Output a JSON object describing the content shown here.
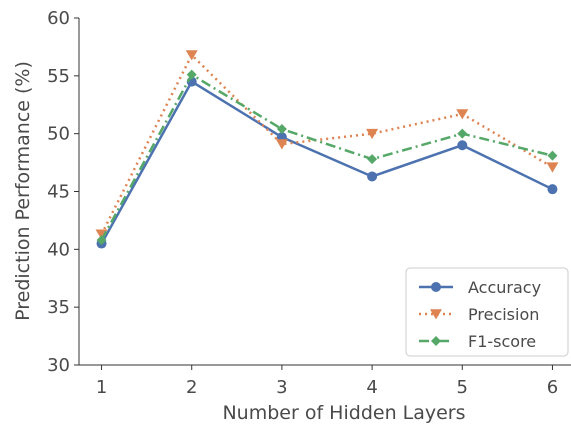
{
  "chart_data": {
    "type": "line",
    "title": "",
    "xlabel": "Number of Hidden Layers",
    "ylabel": "Prediction Performance (%)",
    "x": [
      1,
      2,
      3,
      4,
      5,
      6
    ],
    "xlim": [
      0.75,
      6.25
    ],
    "ylim": [
      30,
      60
    ],
    "xticks": [
      "1",
      "2",
      "3",
      "4",
      "5",
      "6"
    ],
    "yticks": [
      "30",
      "35",
      "40",
      "45",
      "50",
      "55",
      "60"
    ],
    "grid": false,
    "legend_position": "bottom-right",
    "series": [
      {
        "name": "Accuracy",
        "values": [
          40.5,
          54.5,
          49.7,
          46.3,
          49.0,
          45.2
        ],
        "color": "#4c72b0",
        "line_style": "solid",
        "marker": "circle"
      },
      {
        "name": "Precision",
        "values": [
          41.3,
          56.8,
          49.1,
          50.0,
          51.7,
          47.1
        ],
        "color": "#dd8452",
        "line_style": "dotted",
        "marker": "triangle-down"
      },
      {
        "name": "F1-score",
        "values": [
          40.8,
          55.1,
          50.4,
          47.8,
          50.0,
          48.1
        ],
        "color": "#55a868",
        "line_style": "dashdot",
        "marker": "diamond"
      }
    ]
  }
}
